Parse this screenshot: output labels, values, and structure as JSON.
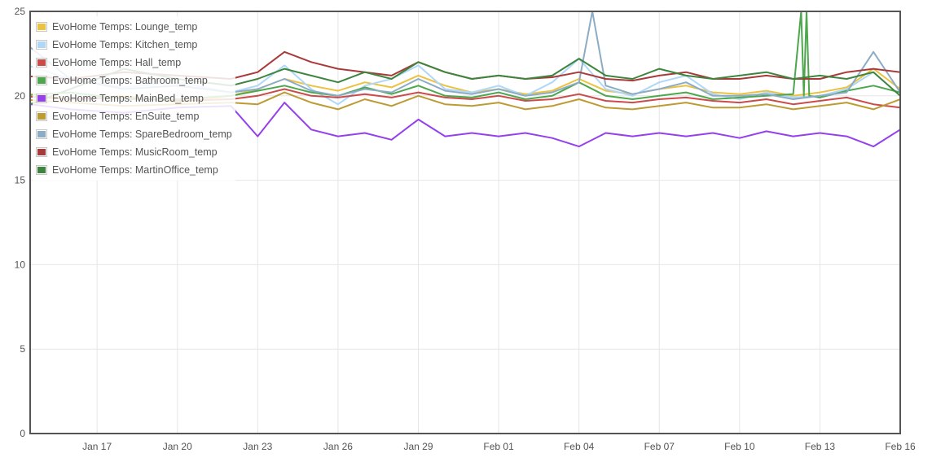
{
  "chart_data": {
    "type": "line",
    "title": "",
    "xlabel": "",
    "ylabel": "",
    "ylim": [
      0,
      25
    ],
    "xlim": [
      "2015-01-14T12:00",
      "2015-02-16T00:00"
    ],
    "y_ticks": [
      "0",
      "5",
      "10",
      "15",
      "20",
      "25"
    ],
    "x_ticks": [
      "Jan 17",
      "Jan 20",
      "Jan 23",
      "Jan 26",
      "Jan 29",
      "Feb 01",
      "Feb 04",
      "Feb 07",
      "Feb 10",
      "Feb 13",
      "Feb 16"
    ],
    "x_tick_dates": [
      "2015-01-17",
      "2015-01-20",
      "2015-01-23",
      "2015-01-26",
      "2015-01-29",
      "2015-02-01",
      "2015-02-04",
      "2015-02-07",
      "2015-02-10",
      "2015-02-13",
      "2015-02-16"
    ],
    "grid": true,
    "legend_position": "top-left",
    "series": [
      {
        "name": "EvoHome Temps: Lounge_temp",
        "color": "#edc240",
        "x": [
          "2015-01-14",
          "2015-01-16",
          "2015-01-18",
          "2015-01-20",
          "2015-01-22",
          "2015-01-23",
          "2015-01-24",
          "2015-01-25",
          "2015-01-26",
          "2015-01-27",
          "2015-01-28",
          "2015-01-29",
          "2015-01-30",
          "2015-01-31",
          "2015-02-01",
          "2015-02-02",
          "2015-02-03",
          "2015-02-04",
          "2015-02-05",
          "2015-02-06",
          "2015-02-07",
          "2015-02-08",
          "2015-02-09",
          "2015-02-10",
          "2015-02-11",
          "2015-02-12",
          "2015-02-13",
          "2015-02-14",
          "2015-02-15",
          "2015-02-16"
        ],
        "y": [
          20.2,
          19.8,
          20.0,
          19.6,
          20.0,
          20.4,
          21.0,
          20.6,
          20.3,
          20.8,
          20.5,
          21.2,
          20.6,
          20.2,
          20.4,
          20.1,
          20.3,
          21.0,
          20.3,
          20.1,
          20.4,
          20.6,
          20.2,
          20.1,
          20.3,
          20.0,
          20.2,
          20.5,
          21.6,
          20.4
        ]
      },
      {
        "name": "EvoHome Temps: Kitchen_temp",
        "color": "#afd8f8",
        "x": [
          "2015-01-14",
          "2015-01-16",
          "2015-01-18",
          "2015-01-20",
          "2015-01-22",
          "2015-01-23",
          "2015-01-24",
          "2015-01-25",
          "2015-01-26",
          "2015-01-27",
          "2015-01-28",
          "2015-01-29",
          "2015-01-30",
          "2015-01-31",
          "2015-02-01",
          "2015-02-02",
          "2015-02-03",
          "2015-02-04",
          "2015-02-05",
          "2015-02-06",
          "2015-02-07",
          "2015-02-08",
          "2015-02-09",
          "2015-02-10",
          "2015-02-11",
          "2015-02-12",
          "2015-02-13",
          "2015-02-14",
          "2015-02-15",
          "2015-02-16"
        ],
        "y": [
          22.0,
          21.0,
          20.5,
          20.8,
          20.2,
          20.6,
          21.8,
          20.4,
          19.5,
          20.6,
          21.0,
          21.8,
          20.4,
          20.2,
          20.6,
          20.0,
          20.8,
          22.2,
          20.4,
          20.0,
          20.8,
          21.2,
          20.1,
          19.8,
          20.2,
          19.9,
          20.0,
          20.4,
          21.4,
          20.0
        ]
      },
      {
        "name": "EvoHome Temps: Hall_temp",
        "color": "#cb4b4b",
        "x": [
          "2015-01-14",
          "2015-01-16",
          "2015-01-18",
          "2015-01-20",
          "2015-01-22",
          "2015-01-23",
          "2015-01-24",
          "2015-01-25",
          "2015-01-26",
          "2015-01-27",
          "2015-01-28",
          "2015-01-29",
          "2015-01-30",
          "2015-01-31",
          "2015-02-01",
          "2015-02-02",
          "2015-02-03",
          "2015-02-04",
          "2015-02-05",
          "2015-02-06",
          "2015-02-07",
          "2015-02-08",
          "2015-02-09",
          "2015-02-10",
          "2015-02-11",
          "2015-02-12",
          "2015-02-13",
          "2015-02-14",
          "2015-02-15",
          "2015-02-16"
        ],
        "y": [
          20.0,
          19.8,
          19.9,
          19.7,
          19.8,
          20.0,
          20.4,
          20.0,
          19.9,
          20.1,
          19.9,
          20.2,
          19.9,
          19.8,
          20.0,
          19.7,
          19.8,
          20.1,
          19.7,
          19.6,
          19.8,
          19.9,
          19.7,
          19.6,
          19.8,
          19.5,
          19.7,
          19.9,
          19.5,
          19.3
        ]
      },
      {
        "name": "EvoHome Temps: Bathroom_temp",
        "color": "#4da74d",
        "x": [
          "2015-01-14",
          "2015-01-16",
          "2015-01-18",
          "2015-01-20",
          "2015-01-22",
          "2015-01-23",
          "2015-01-24",
          "2015-01-25",
          "2015-01-26",
          "2015-01-27",
          "2015-01-28",
          "2015-01-29",
          "2015-01-30",
          "2015-01-31",
          "2015-02-01",
          "2015-02-02",
          "2015-02-03",
          "2015-02-04",
          "2015-02-05",
          "2015-02-06",
          "2015-02-07",
          "2015-02-08",
          "2015-02-09",
          "2015-02-10",
          "2015-02-11",
          "2015-02-12",
          "2015-02-12.3",
          "2015-02-12.4",
          "2015-02-12.5",
          "2015-02-12.6",
          "2015-02-13",
          "2015-02-14",
          "2015-02-15",
          "2015-02-16"
        ],
        "y": [
          20.0,
          20.2,
          19.8,
          19.8,
          20.0,
          20.3,
          20.6,
          20.2,
          20.0,
          20.5,
          20.1,
          20.6,
          20.0,
          19.9,
          20.2,
          19.8,
          20.0,
          20.8,
          20.0,
          19.8,
          20.0,
          20.2,
          19.8,
          19.9,
          20.0,
          20.1,
          25,
          20.0,
          25,
          20.0,
          19.9,
          20.3,
          20.6,
          20.2
        ]
      },
      {
        "name": "EvoHome Temps: MainBed_temp",
        "color": "#9440ed",
        "x": [
          "2015-01-14",
          "2015-01-16",
          "2015-01-18",
          "2015-01-20",
          "2015-01-22",
          "2015-01-23",
          "2015-01-24",
          "2015-01-25",
          "2015-01-26",
          "2015-01-27",
          "2015-01-28",
          "2015-01-29",
          "2015-01-30",
          "2015-01-31",
          "2015-02-01",
          "2015-02-02",
          "2015-02-03",
          "2015-02-04",
          "2015-02-05",
          "2015-02-06",
          "2015-02-07",
          "2015-02-08",
          "2015-02-09",
          "2015-02-10",
          "2015-02-11",
          "2015-02-12",
          "2015-02-13",
          "2015-02-14",
          "2015-02-15",
          "2015-02-16"
        ],
        "y": [
          19.6,
          19.2,
          19.0,
          19.3,
          19.4,
          17.6,
          19.6,
          18.0,
          17.6,
          17.8,
          17.4,
          18.6,
          17.6,
          17.8,
          17.6,
          17.8,
          17.5,
          17.0,
          17.8,
          17.6,
          17.8,
          17.6,
          17.8,
          17.5,
          17.9,
          17.6,
          17.8,
          17.6,
          17.0,
          18.0
        ]
      },
      {
        "name": "EvoHome Temps: EnSuite_temp",
        "color": "#bd9b33",
        "x": [
          "2015-01-14",
          "2015-01-16",
          "2015-01-18",
          "2015-01-20",
          "2015-01-22",
          "2015-01-23",
          "2015-01-24",
          "2015-01-25",
          "2015-01-26",
          "2015-01-27",
          "2015-01-28",
          "2015-01-29",
          "2015-01-30",
          "2015-01-31",
          "2015-02-01",
          "2015-02-02",
          "2015-02-03",
          "2015-02-04",
          "2015-02-05",
          "2015-02-06",
          "2015-02-07",
          "2015-02-08",
          "2015-02-09",
          "2015-02-10",
          "2015-02-11",
          "2015-02-12",
          "2015-02-13",
          "2015-02-14",
          "2015-02-15",
          "2015-02-16"
        ],
        "y": [
          19.8,
          19.6,
          19.4,
          19.5,
          19.6,
          19.5,
          20.2,
          19.6,
          19.2,
          19.8,
          19.4,
          20.0,
          19.5,
          19.4,
          19.6,
          19.2,
          19.4,
          19.8,
          19.3,
          19.2,
          19.4,
          19.6,
          19.3,
          19.3,
          19.5,
          19.2,
          19.4,
          19.6,
          19.2,
          19.8
        ]
      },
      {
        "name": "EvoHome Temps: SpareBedroom_temp",
        "color": "#8cacc6",
        "x": [
          "2015-01-14",
          "2015-01-16",
          "2015-01-18",
          "2015-01-20",
          "2015-01-22",
          "2015-01-23",
          "2015-01-24",
          "2015-01-25",
          "2015-01-26",
          "2015-01-27",
          "2015-01-28",
          "2015-01-29",
          "2015-01-30",
          "2015-01-31",
          "2015-02-01",
          "2015-02-02",
          "2015-02-03",
          "2015-02-04",
          "2015-02-04.5",
          "2015-02-05",
          "2015-02-06",
          "2015-02-07",
          "2015-02-08",
          "2015-02-09",
          "2015-02-10",
          "2015-02-11",
          "2015-02-12",
          "2015-02-13",
          "2015-02-14",
          "2015-02-15",
          "2015-02-16"
        ],
        "y": [
          23.5,
          21.0,
          20.4,
          20.6,
          20.2,
          20.4,
          21.0,
          20.3,
          20.0,
          20.4,
          20.2,
          21.0,
          20.3,
          20.1,
          20.4,
          20.0,
          20.2,
          20.8,
          25,
          20.6,
          20.1,
          20.4,
          20.8,
          20.0,
          20.0,
          20.1,
          19.8,
          20.0,
          20.2,
          22.6,
          20.2
        ]
      },
      {
        "name": "EvoHome Temps: MusicRoom_temp",
        "color": "#a93a3a",
        "x": [
          "2015-01-14",
          "2015-01-16",
          "2015-01-18",
          "2015-01-20",
          "2015-01-22",
          "2015-01-23",
          "2015-01-24",
          "2015-01-25",
          "2015-01-26",
          "2015-01-27",
          "2015-01-28",
          "2015-01-29",
          "2015-01-30",
          "2015-01-31",
          "2015-02-01",
          "2015-02-02",
          "2015-02-03",
          "2015-02-04",
          "2015-02-05",
          "2015-02-06",
          "2015-02-07",
          "2015-02-08",
          "2015-02-09",
          "2015-02-10",
          "2015-02-11",
          "2015-02-12",
          "2015-02-13",
          "2015-02-14",
          "2015-02-15",
          "2015-02-16"
        ],
        "y": [
          21.2,
          21.0,
          21.4,
          21.2,
          21.0,
          21.4,
          22.6,
          22.0,
          21.6,
          21.4,
          21.2,
          22.0,
          21.4,
          21.0,
          21.2,
          21.0,
          21.1,
          21.4,
          21.0,
          20.9,
          21.2,
          21.4,
          21.0,
          21.0,
          21.2,
          21.0,
          21.0,
          21.4,
          21.6,
          21.4
        ]
      },
      {
        "name": "EvoHome Temps: MartinOffice_temp",
        "color": "#3d853d",
        "x": [
          "2015-01-14",
          "2015-01-16",
          "2015-01-18",
          "2015-01-20",
          "2015-01-22",
          "2015-01-23",
          "2015-01-24",
          "2015-01-25",
          "2015-01-26",
          "2015-01-27",
          "2015-01-28",
          "2015-01-29",
          "2015-01-30",
          "2015-01-31",
          "2015-02-01",
          "2015-02-02",
          "2015-02-03",
          "2015-02-04",
          "2015-02-05",
          "2015-02-06",
          "2015-02-07",
          "2015-02-08",
          "2015-02-09",
          "2015-02-10",
          "2015-02-11",
          "2015-02-12",
          "2015-02-13",
          "2015-02-14",
          "2015-02-15",
          "2015-02-16"
        ],
        "y": [
          19.2,
          20.4,
          21.6,
          21.0,
          20.6,
          21.0,
          21.6,
          21.2,
          20.8,
          21.4,
          21.0,
          22.0,
          21.4,
          21.0,
          21.2,
          21.0,
          21.2,
          22.2,
          21.2,
          21.0,
          21.6,
          21.2,
          21.0,
          21.2,
          21.4,
          21.0,
          21.2,
          21.0,
          21.4,
          20.0
        ]
      }
    ]
  }
}
